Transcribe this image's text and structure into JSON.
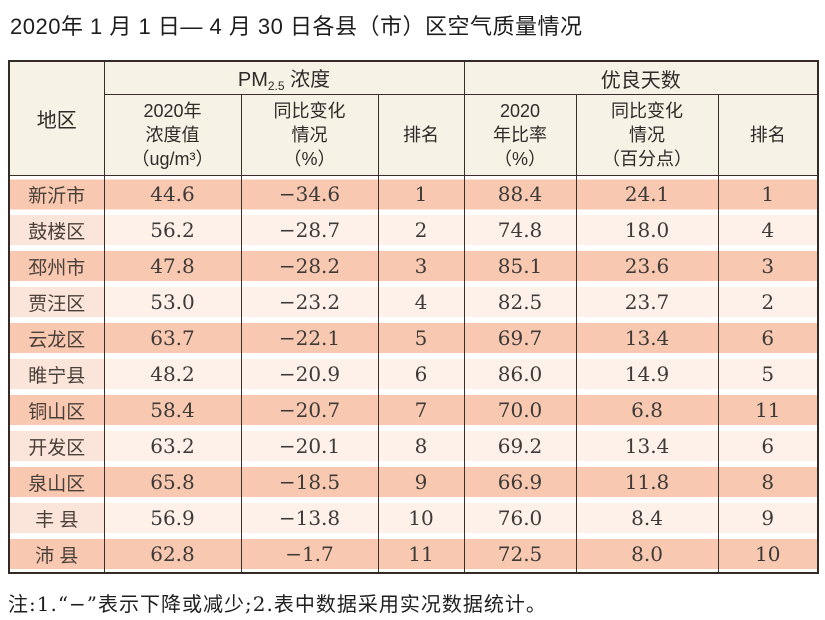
{
  "title": "2020年 1 月 1 日— 4 月 30 日各县（市）区空气质量情况",
  "table": {
    "header": {
      "region": "地区",
      "pm_group": {
        "main": "PM",
        "sub": "2.5",
        "rest": " 浓度"
      },
      "good_group": "优良天数",
      "sub_pm_value": "2020年\n浓度值\n（ug/m³）",
      "sub_pm_change": "同比变化\n情况\n（%）",
      "sub_pm_rank": "排名",
      "sub_good_ratio": "2020\n年比率\n（%）",
      "sub_good_change": "同比变化\n情况\n（百分点）",
      "sub_good_rank": "排名"
    },
    "rows": [
      {
        "region": "新沂市",
        "pm_value": "44.6",
        "pm_change": "−34.6",
        "pm_rank": "1",
        "good_ratio": "88.4",
        "good_change": "24.1",
        "good_rank": "1"
      },
      {
        "region": "鼓楼区",
        "pm_value": "56.2",
        "pm_change": "−28.7",
        "pm_rank": "2",
        "good_ratio": "74.8",
        "good_change": "18.0",
        "good_rank": "4"
      },
      {
        "region": "邳州市",
        "pm_value": "47.8",
        "pm_change": "−28.2",
        "pm_rank": "3",
        "good_ratio": "85.1",
        "good_change": "23.6",
        "good_rank": "3"
      },
      {
        "region": "贾汪区",
        "pm_value": "53.0",
        "pm_change": "−23.2",
        "pm_rank": "4",
        "good_ratio": "82.5",
        "good_change": "23.7",
        "good_rank": "2"
      },
      {
        "region": "云龙区",
        "pm_value": "63.7",
        "pm_change": "−22.1",
        "pm_rank": "5",
        "good_ratio": "69.7",
        "good_change": "13.4",
        "good_rank": "6"
      },
      {
        "region": "睢宁县",
        "pm_value": "48.2",
        "pm_change": "−20.9",
        "pm_rank": "6",
        "good_ratio": "86.0",
        "good_change": "14.9",
        "good_rank": "5"
      },
      {
        "region": "铜山区",
        "pm_value": "58.4",
        "pm_change": "−20.7",
        "pm_rank": "7",
        "good_ratio": "70.0",
        "good_change": "6.8",
        "good_rank": "11"
      },
      {
        "region": "开发区",
        "pm_value": "63.2",
        "pm_change": "−20.1",
        "pm_rank": "8",
        "good_ratio": "69.2",
        "good_change": "13.4",
        "good_rank": "6"
      },
      {
        "region": "泉山区",
        "pm_value": "65.8",
        "pm_change": "−18.5",
        "pm_rank": "9",
        "good_ratio": "66.9",
        "good_change": "11.8",
        "good_rank": "8"
      },
      {
        "region": "丰 县",
        "pm_value": "56.9",
        "pm_change": "−13.8",
        "pm_rank": "10",
        "good_ratio": "76.0",
        "good_change": "8.4",
        "good_rank": "9"
      },
      {
        "region": "沛 县",
        "pm_value": "62.8",
        "pm_change": "−1.7",
        "pm_rank": "11",
        "good_ratio": "72.5",
        "good_change": "8.0",
        "good_rank": "10"
      }
    ]
  },
  "note": "注:1.“−”表示下降或减少;2.表中数据采用实况数据统计。",
  "colors": {
    "row_odd": "#f8c8b1",
    "row_even": "#fdf1ea",
    "row_even_region": "#fbe5da",
    "header_bg": "#f7f2e6",
    "border": "#3a2f2b"
  }
}
